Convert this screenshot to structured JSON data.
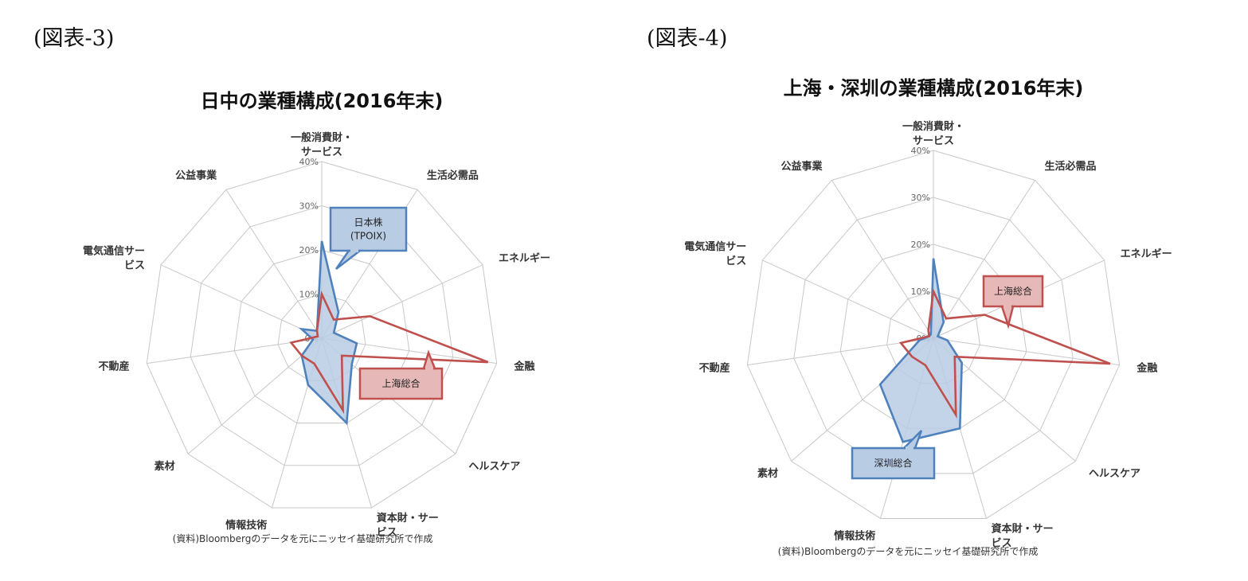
{
  "captions": {
    "left": "(図表-3)",
    "right": "(図表-4)"
  },
  "chart_data": [
    {
      "type": "radar",
      "title": "日中の業種構成(2016年末)",
      "categories": [
        "一般消費財・サービス",
        "生活必需品",
        "エネルギー",
        "金融",
        "ヘルスケア",
        "資本財・サービス",
        "情報技術",
        "素材",
        "不動産",
        "電気通信サービス",
        "公益事業"
      ],
      "category_lines": [
        [
          "一般消費財・",
          "サービス"
        ],
        [
          "生活必需品"
        ],
        [
          "エネルギー"
        ],
        [
          "金融"
        ],
        [
          "ヘルスケア"
        ],
        [
          "資本財・サー",
          "ビス"
        ],
        [
          "情報技術"
        ],
        [
          "素材"
        ],
        [
          "不動産"
        ],
        [
          "電気通信サー",
          "ビス"
        ],
        [
          "公益事業"
        ]
      ],
      "ticks": [
        "0%",
        "10%",
        "20%",
        "30%",
        "40%"
      ],
      "rmax": 40,
      "series": [
        {
          "name": "日本株(TPOIX)",
          "color": "#4f81bd",
          "fill": "#b8cce4",
          "values": [
            22,
            7,
            3,
            8,
            9,
            20,
            11,
            6,
            2,
            5,
            2
          ]
        },
        {
          "name": "上海総合",
          "color": "#c0504d",
          "fill": "none",
          "values": [
            10,
            5,
            12,
            38,
            6,
            17,
            6,
            6,
            7,
            1,
            2
          ]
        }
      ],
      "callouts": [
        {
          "series": 0,
          "lines": [
            "日本株",
            "(TPOIX)"
          ]
        },
        {
          "series": 1,
          "lines": [
            "上海総合"
          ]
        }
      ],
      "source": "(資料)Bloombergのデータを元にニッセイ基礎研究所で作成"
    },
    {
      "type": "radar",
      "title": "上海・深圳の業種構成(2016年末)",
      "categories": [
        "一般消費財・サービス",
        "生活必需品",
        "エネルギー",
        "金融",
        "ヘルスケア",
        "資本財・サービス",
        "情報技術",
        "素材",
        "不動産",
        "電気通信サービス",
        "公益事業"
      ],
      "category_lines": [
        [
          "一般消費財・",
          "サービス"
        ],
        [
          "生活必需品"
        ],
        [
          "エネルギー"
        ],
        [
          "金融"
        ],
        [
          "ヘルスケア"
        ],
        [
          "資本財・サー",
          "ビス"
        ],
        [
          "情報技術"
        ],
        [
          "素材"
        ],
        [
          "不動産"
        ],
        [
          "電気通信サー",
          "ビス"
        ],
        [
          "公益事業"
        ]
      ],
      "ticks": [
        "0%",
        "10%",
        "20%",
        "30%",
        "40%"
      ],
      "rmax": 40,
      "series": [
        {
          "name": "深圳総合",
          "color": "#4f81bd",
          "fill": "#b8cce4",
          "values": [
            17,
            4,
            1,
            3,
            8,
            20,
            23,
            15,
            3,
            1,
            1
          ]
        },
        {
          "name": "上海総合",
          "color": "#c0504d",
          "fill": "none",
          "values": [
            10,
            5,
            12,
            38,
            6,
            17,
            6,
            6,
            7,
            1,
            2
          ]
        }
      ],
      "callouts": [
        {
          "series": 1,
          "lines": [
            "上海総合"
          ]
        },
        {
          "series": 0,
          "lines": [
            "深圳総合"
          ]
        }
      ],
      "source": "(資料)Bloombergのデータを元にニッセイ基礎研究所で作成"
    }
  ]
}
